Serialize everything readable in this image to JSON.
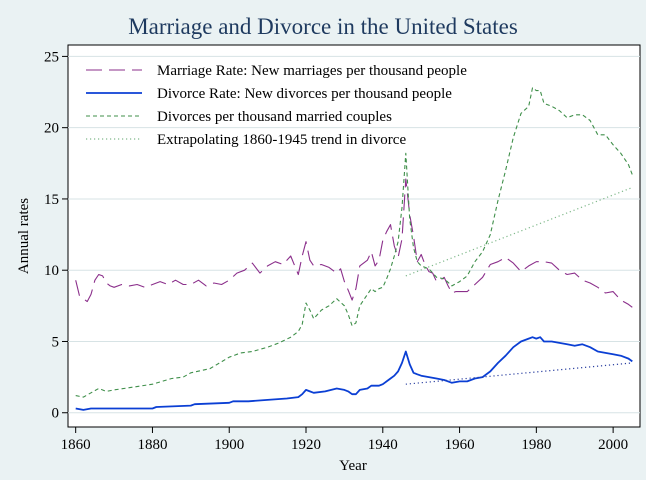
{
  "chart_data": {
    "type": "line",
    "title": "Marriage and Divorce in the United States",
    "xlabel": "Year",
    "ylabel": "Annual rates",
    "xlim": [
      1858,
      2007
    ],
    "ylim": [
      -1,
      25.8
    ],
    "xticks": [
      1860,
      1880,
      1900,
      1920,
      1940,
      1960,
      1980,
      2000
    ],
    "yticks": [
      0,
      5,
      10,
      15,
      20,
      25
    ],
    "grid": "horizontal",
    "legend_position": "top-left",
    "series": [
      {
        "name": "Marriage Rate: New marriages per thousand people",
        "color": "#8b2f8b",
        "style": "longdash",
        "points": [
          [
            1860,
            9.3
          ],
          [
            1861,
            8.2
          ],
          [
            1862,
            8.0
          ],
          [
            1863,
            7.8
          ],
          [
            1864,
            8.3
          ],
          [
            1865,
            9.3
          ],
          [
            1866,
            9.7
          ],
          [
            1867,
            9.6
          ],
          [
            1868,
            9.1
          ],
          [
            1869,
            8.9
          ],
          [
            1870,
            8.8
          ],
          [
            1872,
            9.0
          ],
          [
            1874,
            8.9
          ],
          [
            1876,
            9.0
          ],
          [
            1878,
            8.8
          ],
          [
            1880,
            9.0
          ],
          [
            1882,
            9.2
          ],
          [
            1884,
            9.0
          ],
          [
            1886,
            9.3
          ],
          [
            1888,
            9.0
          ],
          [
            1890,
            9.0
          ],
          [
            1892,
            9.3
          ],
          [
            1894,
            8.9
          ],
          [
            1896,
            9.1
          ],
          [
            1898,
            9.0
          ],
          [
            1900,
            9.3
          ],
          [
            1902,
            9.8
          ],
          [
            1904,
            10.0
          ],
          [
            1906,
            10.5
          ],
          [
            1908,
            9.8
          ],
          [
            1910,
            10.3
          ],
          [
            1912,
            10.6
          ],
          [
            1914,
            10.4
          ],
          [
            1916,
            11.0
          ],
          [
            1918,
            9.7
          ],
          [
            1919,
            11.0
          ],
          [
            1920,
            12.0
          ],
          [
            1921,
            10.7
          ],
          [
            1922,
            10.3
          ],
          [
            1924,
            10.4
          ],
          [
            1926,
            10.2
          ],
          [
            1928,
            9.8
          ],
          [
            1929,
            10.1
          ],
          [
            1930,
            9.2
          ],
          [
            1931,
            8.6
          ],
          [
            1932,
            7.9
          ],
          [
            1933,
            8.7
          ],
          [
            1934,
            10.3
          ],
          [
            1936,
            10.7
          ],
          [
            1937,
            11.3
          ],
          [
            1938,
            10.3
          ],
          [
            1939,
            10.7
          ],
          [
            1940,
            12.1
          ],
          [
            1941,
            12.7
          ],
          [
            1942,
            13.2
          ],
          [
            1943,
            11.7
          ],
          [
            1944,
            10.9
          ],
          [
            1945,
            12.2
          ],
          [
            1946,
            16.4
          ],
          [
            1947,
            13.9
          ],
          [
            1948,
            12.4
          ],
          [
            1949,
            10.6
          ],
          [
            1950,
            11.1
          ],
          [
            1951,
            10.4
          ],
          [
            1952,
            9.9
          ],
          [
            1953,
            9.8
          ],
          [
            1954,
            9.2
          ],
          [
            1955,
            9.3
          ],
          [
            1956,
            9.5
          ],
          [
            1957,
            8.9
          ],
          [
            1958,
            8.4
          ],
          [
            1959,
            8.5
          ],
          [
            1960,
            8.5
          ],
          [
            1962,
            8.5
          ],
          [
            1964,
            9.0
          ],
          [
            1966,
            9.5
          ],
          [
            1968,
            10.4
          ],
          [
            1970,
            10.6
          ],
          [
            1972,
            10.9
          ],
          [
            1974,
            10.5
          ],
          [
            1976,
            9.9
          ],
          [
            1978,
            10.3
          ],
          [
            1980,
            10.6
          ],
          [
            1982,
            10.6
          ],
          [
            1984,
            10.5
          ],
          [
            1986,
            10.0
          ],
          [
            1988,
            9.7
          ],
          [
            1990,
            9.8
          ],
          [
            1992,
            9.3
          ],
          [
            1994,
            9.1
          ],
          [
            1996,
            8.8
          ],
          [
            1998,
            8.4
          ],
          [
            2000,
            8.5
          ],
          [
            2002,
            7.9
          ],
          [
            2004,
            7.6
          ],
          [
            2005,
            7.4
          ]
        ]
      },
      {
        "name": "Divorce Rate: New divorces per thousand people",
        "color": "#0b3fd4",
        "style": "solid",
        "points": [
          [
            1860,
            0.3
          ],
          [
            1862,
            0.2
          ],
          [
            1864,
            0.3
          ],
          [
            1870,
            0.3
          ],
          [
            1880,
            0.3
          ],
          [
            1881,
            0.4
          ],
          [
            1890,
            0.5
          ],
          [
            1891,
            0.6
          ],
          [
            1900,
            0.7
          ],
          [
            1901,
            0.8
          ],
          [
            1905,
            0.8
          ],
          [
            1910,
            0.9
          ],
          [
            1915,
            1.0
          ],
          [
            1918,
            1.1
          ],
          [
            1919,
            1.3
          ],
          [
            1920,
            1.6
          ],
          [
            1921,
            1.5
          ],
          [
            1922,
            1.4
          ],
          [
            1925,
            1.5
          ],
          [
            1928,
            1.7
          ],
          [
            1930,
            1.6
          ],
          [
            1931,
            1.5
          ],
          [
            1932,
            1.3
          ],
          [
            1933,
            1.3
          ],
          [
            1934,
            1.6
          ],
          [
            1936,
            1.7
          ],
          [
            1937,
            1.9
          ],
          [
            1939,
            1.9
          ],
          [
            1940,
            2.0
          ],
          [
            1941,
            2.2
          ],
          [
            1942,
            2.4
          ],
          [
            1943,
            2.6
          ],
          [
            1944,
            2.9
          ],
          [
            1945,
            3.5
          ],
          [
            1946,
            4.3
          ],
          [
            1947,
            3.4
          ],
          [
            1948,
            2.8
          ],
          [
            1949,
            2.7
          ],
          [
            1950,
            2.6
          ],
          [
            1952,
            2.5
          ],
          [
            1954,
            2.4
          ],
          [
            1956,
            2.3
          ],
          [
            1958,
            2.1
          ],
          [
            1960,
            2.2
          ],
          [
            1962,
            2.2
          ],
          [
            1964,
            2.4
          ],
          [
            1966,
            2.5
          ],
          [
            1968,
            2.9
          ],
          [
            1970,
            3.5
          ],
          [
            1972,
            4.0
          ],
          [
            1974,
            4.6
          ],
          [
            1976,
            5.0
          ],
          [
            1978,
            5.2
          ],
          [
            1979,
            5.3
          ],
          [
            1980,
            5.2
          ],
          [
            1981,
            5.3
          ],
          [
            1982,
            5.0
          ],
          [
            1984,
            5.0
          ],
          [
            1986,
            4.9
          ],
          [
            1988,
            4.8
          ],
          [
            1990,
            4.7
          ],
          [
            1992,
            4.8
          ],
          [
            1994,
            4.6
          ],
          [
            1996,
            4.3
          ],
          [
            1998,
            4.2
          ],
          [
            2000,
            4.1
          ],
          [
            2002,
            4.0
          ],
          [
            2004,
            3.8
          ],
          [
            2005,
            3.6
          ]
        ]
      },
      {
        "name": "Divorces per thousand married couples",
        "color": "#3f8f4a",
        "style": "dashed",
        "points": [
          [
            1860,
            1.2
          ],
          [
            1862,
            1.1
          ],
          [
            1864,
            1.4
          ],
          [
            1866,
            1.7
          ],
          [
            1868,
            1.5
          ],
          [
            1870,
            1.6
          ],
          [
            1875,
            1.8
          ],
          [
            1880,
            2.0
          ],
          [
            1885,
            2.4
          ],
          [
            1888,
            2.5
          ],
          [
            1890,
            2.8
          ],
          [
            1895,
            3.1
          ],
          [
            1900,
            3.9
          ],
          [
            1903,
            4.2
          ],
          [
            1906,
            4.3
          ],
          [
            1910,
            4.6
          ],
          [
            1913,
            4.9
          ],
          [
            1916,
            5.3
          ],
          [
            1918,
            5.7
          ],
          [
            1919,
            6.2
          ],
          [
            1920,
            7.7
          ],
          [
            1921,
            7.2
          ],
          [
            1922,
            6.6
          ],
          [
            1924,
            7.2
          ],
          [
            1926,
            7.5
          ],
          [
            1928,
            8.0
          ],
          [
            1930,
            7.5
          ],
          [
            1931,
            6.9
          ],
          [
            1932,
            6.1
          ],
          [
            1933,
            6.3
          ],
          [
            1934,
            7.5
          ],
          [
            1936,
            8.3
          ],
          [
            1937,
            8.7
          ],
          [
            1938,
            8.5
          ],
          [
            1939,
            8.7
          ],
          [
            1940,
            8.8
          ],
          [
            1941,
            9.4
          ],
          [
            1942,
            10.1
          ],
          [
            1943,
            11.0
          ],
          [
            1944,
            12.0
          ],
          [
            1945,
            14.4
          ],
          [
            1946,
            18.2
          ],
          [
            1947,
            13.6
          ],
          [
            1948,
            11.6
          ],
          [
            1949,
            10.6
          ],
          [
            1950,
            10.3
          ],
          [
            1952,
            10.1
          ],
          [
            1954,
            9.5
          ],
          [
            1956,
            9.4
          ],
          [
            1958,
            8.9
          ],
          [
            1960,
            9.2
          ],
          [
            1962,
            9.6
          ],
          [
            1964,
            10.6
          ],
          [
            1966,
            11.3
          ],
          [
            1968,
            12.5
          ],
          [
            1970,
            14.9
          ],
          [
            1972,
            17.0
          ],
          [
            1974,
            19.3
          ],
          [
            1976,
            21.0
          ],
          [
            1978,
            21.5
          ],
          [
            1979,
            22.8
          ],
          [
            1980,
            22.6
          ],
          [
            1981,
            22.6
          ],
          [
            1982,
            21.7
          ],
          [
            1984,
            21.5
          ],
          [
            1986,
            21.2
          ],
          [
            1988,
            20.7
          ],
          [
            1990,
            20.9
          ],
          [
            1992,
            20.9
          ],
          [
            1994,
            20.5
          ],
          [
            1996,
            19.5
          ],
          [
            1998,
            19.5
          ],
          [
            2000,
            18.8
          ],
          [
            2002,
            18.2
          ],
          [
            2004,
            17.4
          ],
          [
            2005,
            16.7
          ]
        ]
      },
      {
        "name": "Extrapolating 1860-1945 trend in divorce",
        "color": "#7fb88a",
        "style": "dotted",
        "points": [
          [
            1946,
            9.6
          ],
          [
            2005,
            15.8
          ]
        ]
      },
      {
        "name": "",
        "color": "#2a3fa0",
        "style": "dotted",
        "points": [
          [
            1946,
            2.0
          ],
          [
            2005,
            3.5
          ]
        ]
      }
    ]
  }
}
